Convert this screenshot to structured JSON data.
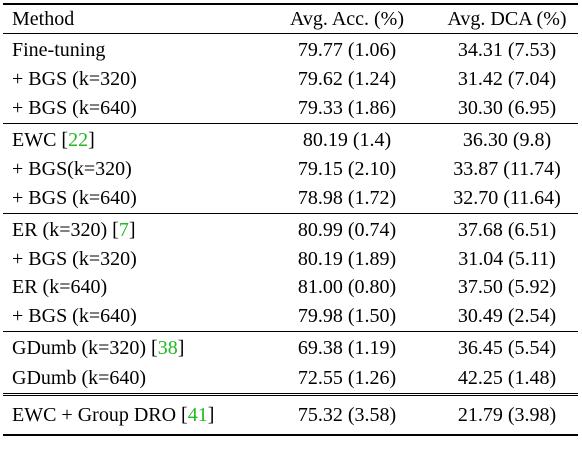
{
  "table": {
    "headers": [
      "Method",
      "Avg. Acc. (%)",
      "Avg. DCA (%)"
    ],
    "groups": [
      {
        "rows": [
          {
            "method": "Fine-tuning",
            "cite": "",
            "suffix": "",
            "acc": "79.77 (1.06)",
            "dca": "34.31 (7.53)",
            "dca_bold": false
          },
          {
            "method": "+ BGS (k=320)",
            "cite": "",
            "suffix": "",
            "acc": "79.62 (1.24)",
            "dca": "31.42 (7.04)",
            "dca_bold": true
          },
          {
            "method": "+ BGS (k=640)",
            "cite": "",
            "suffix": "",
            "acc": "79.33 (1.86)",
            "dca": "30.30 (6.95)",
            "dca_bold": true
          }
        ]
      },
      {
        "rows": [
          {
            "method": "EWC [",
            "cite": "22",
            "suffix": "]",
            "acc": "80.19 (1.4)",
            "dca": "36.30 (9.8)",
            "dca_bold": false
          },
          {
            "method": "+ BGS(k=320)",
            "cite": "",
            "suffix": "",
            "acc": "79.15 (2.10)",
            "dca": "33.87 (11.74)",
            "dca_bold": true
          },
          {
            "method": "+ BGS (k=640)",
            "cite": "",
            "suffix": "",
            "acc": "78.98 (1.72)",
            "dca": "32.70 (11.64)",
            "dca_bold": true
          }
        ]
      },
      {
        "rows": [
          {
            "method": "ER (k=320) [",
            "cite": "7",
            "suffix": "]",
            "acc": "80.99 (0.74)",
            "dca": "37.68 (6.51)",
            "dca_bold": false
          },
          {
            "method": "+ BGS (k=320)",
            "cite": "",
            "suffix": "",
            "acc": "80.19 (1.89)",
            "dca": "31.04 (5.11)",
            "dca_bold": true
          },
          {
            "method": "ER (k=640)",
            "cite": "",
            "suffix": "",
            "acc": "81.00 (0.80)",
            "dca": "37.50 (5.92)",
            "dca_bold": false
          },
          {
            "method": "+ BGS (k=640)",
            "cite": "",
            "suffix": "",
            "acc": "79.98 (1.50)",
            "dca": "30.49 (2.54)",
            "dca_bold": true
          }
        ]
      },
      {
        "rows": [
          {
            "method": "GDumb (k=320) [",
            "cite": "38",
            "suffix": "]",
            "acc": "69.38 (1.19)",
            "dca": "36.45 (5.54)",
            "dca_bold": false
          },
          {
            "method": "GDumb (k=640)",
            "cite": "",
            "suffix": "",
            "acc": "72.55 (1.26)",
            "dca": "42.25 (1.48)",
            "dca_bold": false
          }
        ]
      },
      {
        "double_rule": true,
        "rows": [
          {
            "method": "EWC + Group DRO [",
            "cite": "41",
            "suffix": "]",
            "acc": "75.32 (3.58)",
            "dca": "21.79 (3.98)",
            "dca_bold": false
          }
        ]
      }
    ]
  },
  "colors": {
    "citation": "#22b922",
    "text": "#000000"
  }
}
